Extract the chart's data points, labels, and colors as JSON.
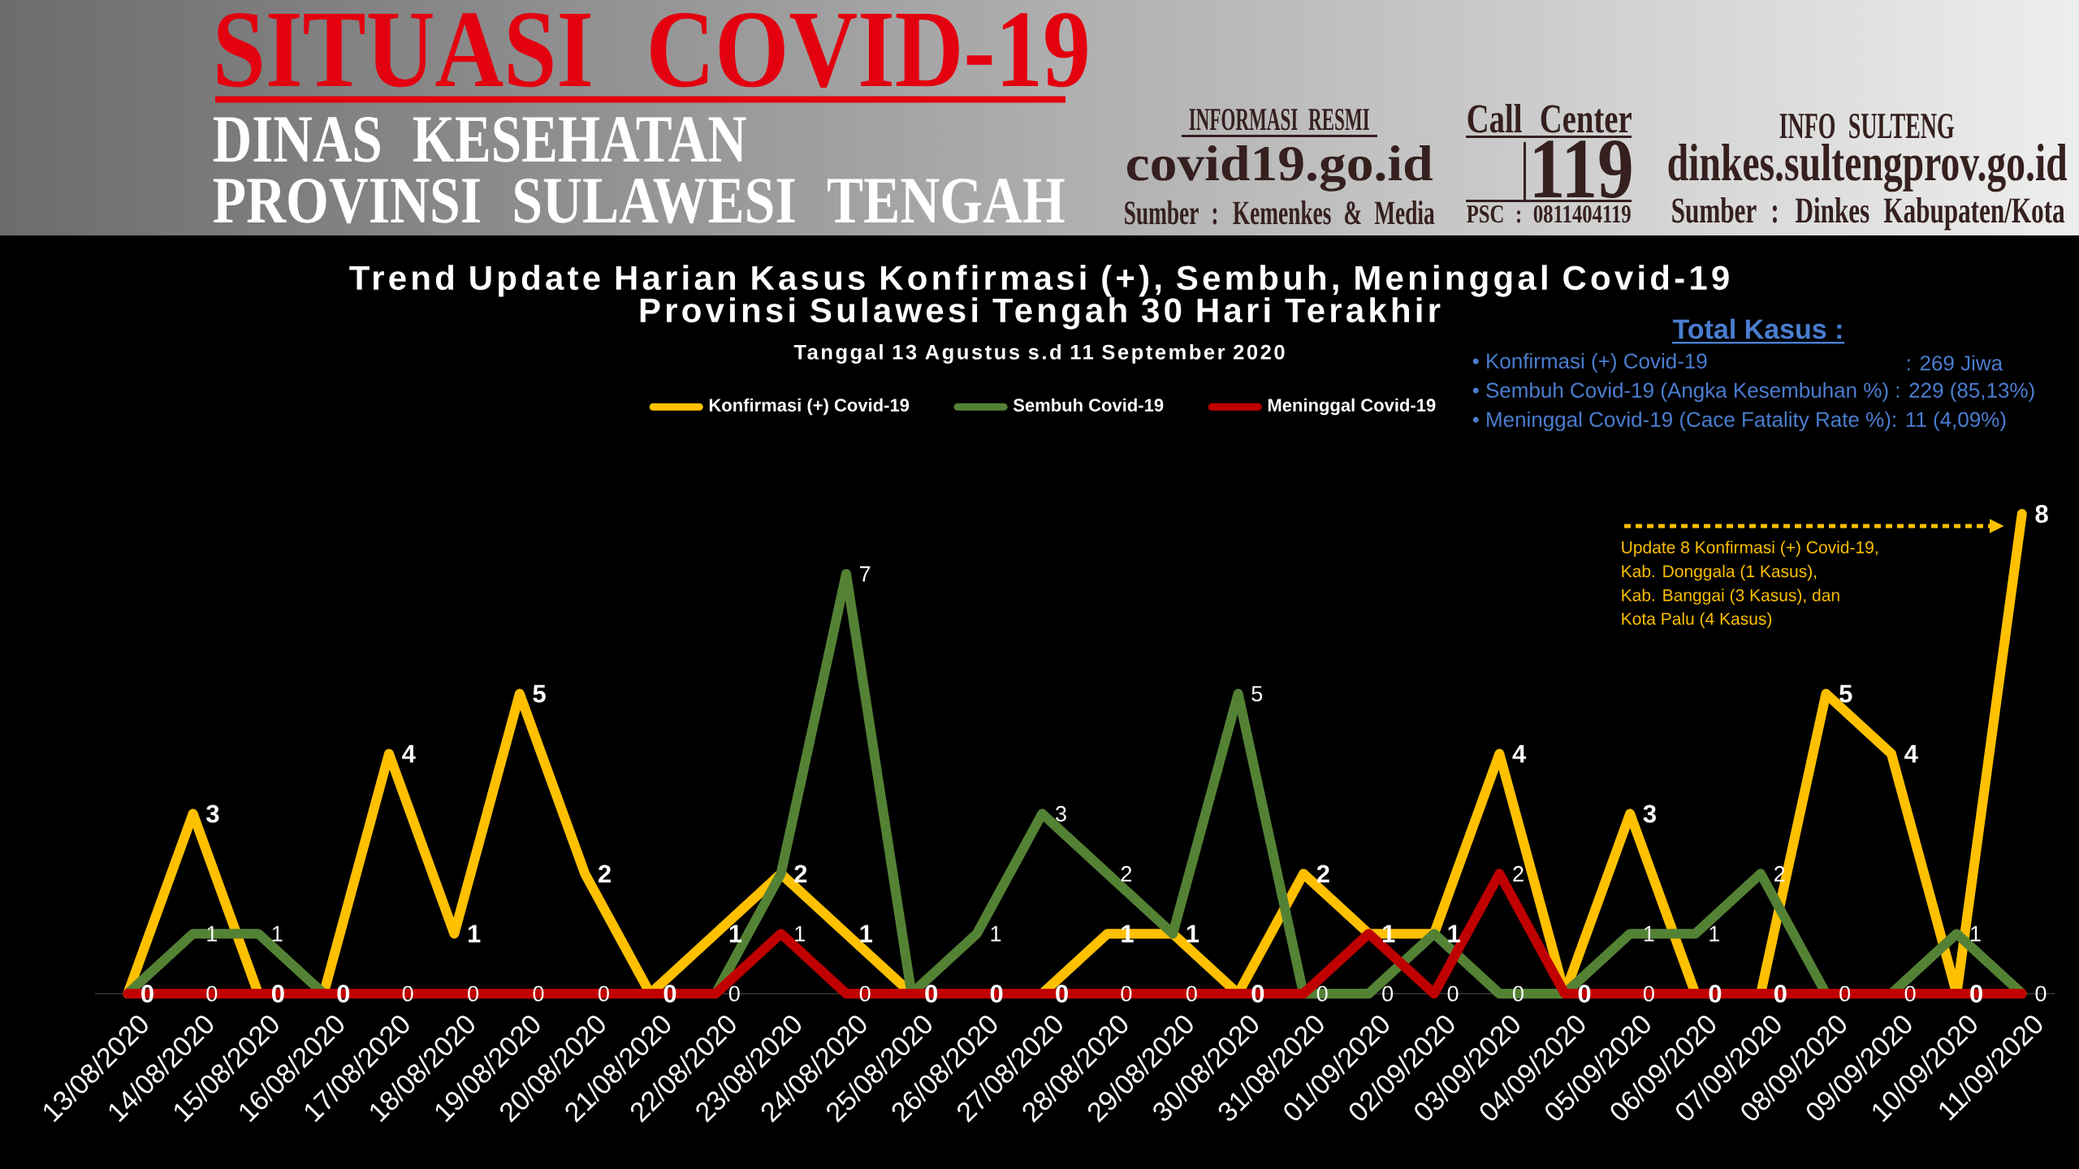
{
  "chart_data": {
    "type": "line",
    "title": "Trend Update Harian Kasus Konfirmasi (+), Sembuh, Meninggal Covid-19 Provinsi Sulawesi Tengah 30 Hari Terakhir",
    "subtitle": "Tanggal 13 Agustus s.d 11 September 2020",
    "categories": [
      "13/08/2020",
      "14/08/2020",
      "15/08/2020",
      "16/08/2020",
      "17/08/2020",
      "18/08/2020",
      "19/08/2020",
      "20/08/2020",
      "21/08/2020",
      "22/08/2020",
      "23/08/2020",
      "24/08/2020",
      "25/08/2020",
      "26/08/2020",
      "27/08/2020",
      "28/08/2020",
      "29/08/2020",
      "30/08/2020",
      "31/08/2020",
      "01/09/2020",
      "02/09/2020",
      "03/09/2020",
      "04/09/2020",
      "05/09/2020",
      "06/09/2020",
      "07/09/2020",
      "08/09/2020",
      "09/09/2020",
      "10/09/2020",
      "11/09/2020"
    ],
    "series": [
      {
        "name": "Konfirmasi (+) Covid-19",
        "color": "#ffc000",
        "values": [
          0,
          3,
          0,
          0,
          4,
          1,
          5,
          2,
          0,
          1,
          2,
          1,
          0,
          0,
          0,
          1,
          1,
          0,
          2,
          1,
          1,
          4,
          0,
          3,
          0,
          0,
          5,
          4,
          0,
          8
        ],
        "value_labels": [
          "0",
          "3",
          "0",
          "0",
          "4",
          "1",
          "5",
          "2",
          "0",
          "1",
          "2",
          "1",
          "0",
          "0",
          "0",
          "1",
          "1",
          "0",
          "2",
          "1",
          "1",
          "4",
          "0",
          "3",
          "0",
          "0",
          "5",
          "4",
          "0",
          "8"
        ]
      },
      {
        "name": "Sembuh Covid-19",
        "color": "#548235",
        "values": [
          0,
          1,
          1,
          0,
          0,
          0,
          0,
          0,
          0,
          0,
          2,
          7,
          0,
          1,
          3,
          2,
          1,
          5,
          0,
          0,
          1,
          0,
          0,
          1,
          1,
          2,
          0,
          0,
          1,
          0
        ],
        "value_labels": [
          null,
          "1",
          "1",
          null,
          "0",
          "0",
          "0",
          "0",
          null,
          "0",
          null,
          "7",
          null,
          "1",
          "3",
          "2",
          null,
          "5",
          "0",
          "0",
          null,
          "0",
          null,
          "1",
          "1",
          "2",
          "0",
          "0",
          "1",
          "0"
        ]
      },
      {
        "name": "Meninggal Covid-19",
        "color": "#c00000",
        "values": [
          0,
          0,
          0,
          0,
          0,
          0,
          0,
          0,
          0,
          0,
          1,
          0,
          0,
          0,
          0,
          0,
          0,
          0,
          0,
          1,
          0,
          2,
          0,
          0,
          0,
          0,
          0,
          0,
          0,
          0
        ],
        "value_labels": [
          null,
          "0",
          null,
          null,
          null,
          null,
          null,
          null,
          null,
          null,
          "1",
          "0",
          null,
          null,
          null,
          "0",
          "0",
          null,
          null,
          null,
          "0",
          "2",
          null,
          "0",
          null,
          null,
          null,
          null,
          null,
          null
        ]
      }
    ],
    "legend": "top",
    "line_style": "solid",
    "tick_labels": "x",
    "annotations": [
      "SITUASI COVID-19",
      "DINAS KESEHATAN",
      "PROVINSI SULAWESI TENGAH",
      "INFORMASI RESMI",
      "covid19.go.id",
      "Sumber : Kemenkes & Media",
      "Call Center",
      "119",
      "PSC : 0811404119",
      "INFO SULTENG",
      "dinkes.sultengprov.go.id",
      "Sumber : Dinkes Kabupaten/Kota",
      "Total Kasus :",
      "• Konfirmasi (+) Covid-19",
      ": 269 Jiwa",
      "• Sembuh Covid-19 (Angka Kesembuhan %) : 229 (85,13%)",
      "• Meninggal Covid-19 (Cace Fatality Rate %): 11 (4,09%)",
      "Update 8 Konfirmasi (+) Covid-19,",
      "Kab. Donggala (1 Kasus),",
      "Kab. Banggai (3 Kasus), dan",
      "Kota Palu (4 Kasus)"
    ]
  }
}
